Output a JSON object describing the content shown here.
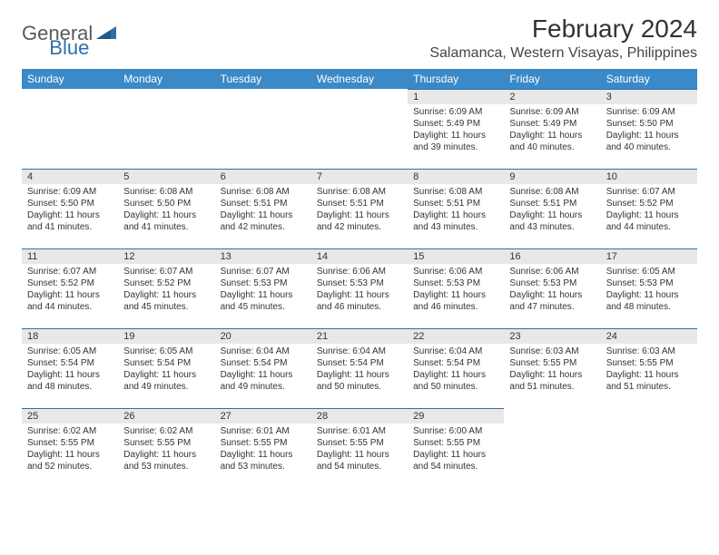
{
  "logo": {
    "text1": "General",
    "text2": "Blue"
  },
  "title": "February 2024",
  "location": "Salamanca, Western Visayas, Philippines",
  "columns": [
    "Sunday",
    "Monday",
    "Tuesday",
    "Wednesday",
    "Thursday",
    "Friday",
    "Saturday"
  ],
  "colors": {
    "header_bg": "#3b89c7",
    "header_text": "#ffffff",
    "daynum_bg": "#e8e8e8",
    "daynum_border": "#2f6fa8",
    "logo_gray": "#5a5a5a",
    "logo_blue": "#2f6fa8"
  },
  "first_weekday": 4,
  "days": [
    {
      "n": 1,
      "sunrise": "6:09 AM",
      "sunset": "5:49 PM",
      "daylight": "11 hours and 39 minutes."
    },
    {
      "n": 2,
      "sunrise": "6:09 AM",
      "sunset": "5:49 PM",
      "daylight": "11 hours and 40 minutes."
    },
    {
      "n": 3,
      "sunrise": "6:09 AM",
      "sunset": "5:50 PM",
      "daylight": "11 hours and 40 minutes."
    },
    {
      "n": 4,
      "sunrise": "6:09 AM",
      "sunset": "5:50 PM",
      "daylight": "11 hours and 41 minutes."
    },
    {
      "n": 5,
      "sunrise": "6:08 AM",
      "sunset": "5:50 PM",
      "daylight": "11 hours and 41 minutes."
    },
    {
      "n": 6,
      "sunrise": "6:08 AM",
      "sunset": "5:51 PM",
      "daylight": "11 hours and 42 minutes."
    },
    {
      "n": 7,
      "sunrise": "6:08 AM",
      "sunset": "5:51 PM",
      "daylight": "11 hours and 42 minutes."
    },
    {
      "n": 8,
      "sunrise": "6:08 AM",
      "sunset": "5:51 PM",
      "daylight": "11 hours and 43 minutes."
    },
    {
      "n": 9,
      "sunrise": "6:08 AM",
      "sunset": "5:51 PM",
      "daylight": "11 hours and 43 minutes."
    },
    {
      "n": 10,
      "sunrise": "6:07 AM",
      "sunset": "5:52 PM",
      "daylight": "11 hours and 44 minutes."
    },
    {
      "n": 11,
      "sunrise": "6:07 AM",
      "sunset": "5:52 PM",
      "daylight": "11 hours and 44 minutes."
    },
    {
      "n": 12,
      "sunrise": "6:07 AM",
      "sunset": "5:52 PM",
      "daylight": "11 hours and 45 minutes."
    },
    {
      "n": 13,
      "sunrise": "6:07 AM",
      "sunset": "5:53 PM",
      "daylight": "11 hours and 45 minutes."
    },
    {
      "n": 14,
      "sunrise": "6:06 AM",
      "sunset": "5:53 PM",
      "daylight": "11 hours and 46 minutes."
    },
    {
      "n": 15,
      "sunrise": "6:06 AM",
      "sunset": "5:53 PM",
      "daylight": "11 hours and 46 minutes."
    },
    {
      "n": 16,
      "sunrise": "6:06 AM",
      "sunset": "5:53 PM",
      "daylight": "11 hours and 47 minutes."
    },
    {
      "n": 17,
      "sunrise": "6:05 AM",
      "sunset": "5:53 PM",
      "daylight": "11 hours and 48 minutes."
    },
    {
      "n": 18,
      "sunrise": "6:05 AM",
      "sunset": "5:54 PM",
      "daylight": "11 hours and 48 minutes."
    },
    {
      "n": 19,
      "sunrise": "6:05 AM",
      "sunset": "5:54 PM",
      "daylight": "11 hours and 49 minutes."
    },
    {
      "n": 20,
      "sunrise": "6:04 AM",
      "sunset": "5:54 PM",
      "daylight": "11 hours and 49 minutes."
    },
    {
      "n": 21,
      "sunrise": "6:04 AM",
      "sunset": "5:54 PM",
      "daylight": "11 hours and 50 minutes."
    },
    {
      "n": 22,
      "sunrise": "6:04 AM",
      "sunset": "5:54 PM",
      "daylight": "11 hours and 50 minutes."
    },
    {
      "n": 23,
      "sunrise": "6:03 AM",
      "sunset": "5:55 PM",
      "daylight": "11 hours and 51 minutes."
    },
    {
      "n": 24,
      "sunrise": "6:03 AM",
      "sunset": "5:55 PM",
      "daylight": "11 hours and 51 minutes."
    },
    {
      "n": 25,
      "sunrise": "6:02 AM",
      "sunset": "5:55 PM",
      "daylight": "11 hours and 52 minutes."
    },
    {
      "n": 26,
      "sunrise": "6:02 AM",
      "sunset": "5:55 PM",
      "daylight": "11 hours and 53 minutes."
    },
    {
      "n": 27,
      "sunrise": "6:01 AM",
      "sunset": "5:55 PM",
      "daylight": "11 hours and 53 minutes."
    },
    {
      "n": 28,
      "sunrise": "6:01 AM",
      "sunset": "5:55 PM",
      "daylight": "11 hours and 54 minutes."
    },
    {
      "n": 29,
      "sunrise": "6:00 AM",
      "sunset": "5:55 PM",
      "daylight": "11 hours and 54 minutes."
    }
  ],
  "labels": {
    "sunrise": "Sunrise:",
    "sunset": "Sunset:",
    "daylight": "Daylight:"
  }
}
